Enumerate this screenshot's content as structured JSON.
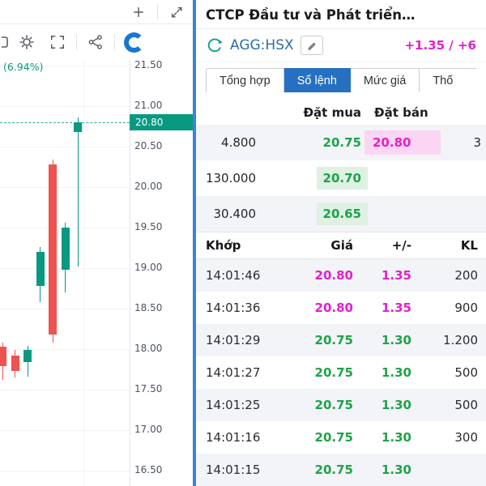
{
  "colors": {
    "up": "#089981",
    "down": "#ef5350",
    "up2": "#1fa24a",
    "ceil": "#e320cb",
    "pinkbg": "#fbd6f3",
    "greenbg": "#def1e2",
    "rowalt": "#f2f4f8",
    "tabblue": "#2570c0",
    "symblue": "#2e6da4",
    "divider": "#3c82d9"
  },
  "chart": {
    "percent_label": "(6.94%)",
    "current_price": "20.80",
    "price_axis": [
      "21.50",
      "21.00",
      "20.50",
      "20.00",
      "19.50",
      "19.00",
      "18.50",
      "18.00",
      "17.50",
      "17.00",
      "16.50"
    ],
    "candles": [
      {
        "o": 18.03,
        "h": 18.08,
        "l": 17.62,
        "c": 17.79
      },
      {
        "o": 17.92,
        "h": 17.99,
        "l": 17.65,
        "c": 17.73
      },
      {
        "o": 17.84,
        "h": 18.04,
        "l": 17.66,
        "c": 17.99
      },
      {
        "o": 18.78,
        "h": 19.26,
        "l": 18.58,
        "c": 19.2
      },
      {
        "o": 20.28,
        "h": 20.34,
        "l": 18.08,
        "c": 18.18
      },
      {
        "o": 18.98,
        "h": 19.56,
        "l": 18.7,
        "c": 19.5
      },
      {
        "o": 20.68,
        "h": 20.86,
        "l": 19.02,
        "c": 20.8
      }
    ]
  },
  "panel": {
    "title": "CTCP Đầu tư và Phát triển…",
    "symbol": "AGG:HSX",
    "change": "+1.35 / +6",
    "tabs": [
      {
        "label": "Tổng hợp",
        "active": false
      },
      {
        "label": "Sổ lệnh",
        "active": true
      },
      {
        "label": "Mức giá",
        "active": false
      },
      {
        "label": "Thố",
        "active": false
      }
    ],
    "orderbook": {
      "buy_header": "Đặt mua",
      "sell_header": "Đặt bán",
      "rows": [
        {
          "buy_vol": "4.800",
          "buy_price": "20.75",
          "flash": false,
          "sell_price": "20.80",
          "sell_vol": "3"
        },
        {
          "buy_vol": "130.000",
          "buy_price": "20.70",
          "flash": true,
          "sell_price": "",
          "sell_vol": ""
        },
        {
          "buy_vol": "30.400",
          "buy_price": "20.65",
          "flash": true,
          "sell_price": "",
          "sell_vol": ""
        }
      ]
    },
    "trades": {
      "headers": [
        "Khớp",
        "Giá",
        "+/-",
        "KL"
      ],
      "rows": [
        {
          "time": "14:01:46",
          "price": "20.80",
          "change": "1.35",
          "vol": "200",
          "trend": "ceil"
        },
        {
          "time": "14:01:36",
          "price": "20.80",
          "change": "1.35",
          "vol": "900",
          "trend": "ceil"
        },
        {
          "time": "14:01:29",
          "price": "20.75",
          "change": "1.30",
          "vol": "1.200",
          "trend": "up"
        },
        {
          "time": "14:01:27",
          "price": "20.75",
          "change": "1.30",
          "vol": "500",
          "trend": "up"
        },
        {
          "time": "14:01:25",
          "price": "20.75",
          "change": "1.30",
          "vol": "500",
          "trend": "up"
        },
        {
          "time": "14:01:16",
          "price": "20.75",
          "change": "1.30",
          "vol": "300",
          "trend": "up"
        },
        {
          "time": "14:01:15",
          "price": "20.75",
          "change": "1.30",
          "vol": "",
          "trend": "up"
        }
      ]
    }
  }
}
